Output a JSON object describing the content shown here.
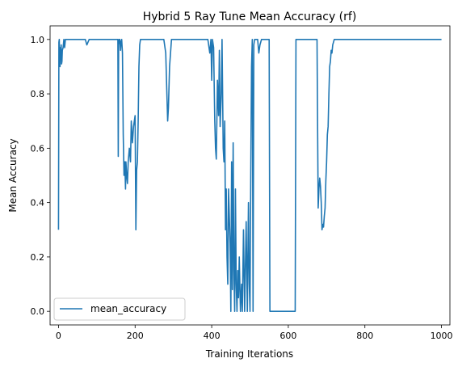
{
  "chart_data": {
    "type": "line",
    "title": "Hybrid 5 Ray Tune Mean Accuracy (rf)",
    "xlabel": "Training Iterations",
    "ylabel": "Mean Accuracy",
    "xlim": [
      -22,
      1022
    ],
    "ylim": [
      -0.05,
      1.05
    ],
    "xticks": [
      0,
      200,
      400,
      600,
      800,
      1000
    ],
    "yticks": [
      0.0,
      0.2,
      0.4,
      0.6,
      0.8,
      1.0
    ],
    "xtick_labels": [
      "0",
      "200",
      "400",
      "600",
      "800",
      "1000"
    ],
    "ytick_labels": [
      "0.0",
      "0.2",
      "0.4",
      "0.6",
      "0.8",
      "1.0"
    ],
    "grid": false,
    "legend_position": "lower-left",
    "series": [
      {
        "name": "mean_accuracy",
        "color": "#1f77b4",
        "x": [
          0,
          1,
          2,
          3,
          4,
          5,
          6,
          7,
          8,
          9,
          10,
          12,
          14,
          16,
          18,
          20,
          25,
          40,
          60,
          70,
          72,
          74,
          80,
          85,
          90,
          95,
          100,
          120,
          140,
          155,
          156,
          157,
          158,
          160,
          162,
          163,
          165,
          167,
          169,
          171,
          173,
          175,
          176,
          178,
          180,
          182,
          185,
          188,
          190,
          193,
          196,
          200,
          202,
          204,
          206,
          208,
          210,
          212,
          214,
          216,
          218,
          220,
          225,
          240,
          260,
          275,
          280,
          283,
          285,
          287,
          290,
          295,
          300,
          320,
          340,
          360,
          380,
          390,
          395,
          398,
          400,
          402,
          405,
          408,
          410,
          412,
          415,
          418,
          420,
          422,
          425,
          427,
          430,
          432,
          434,
          436,
          438,
          440,
          442,
          444,
          446,
          448,
          450,
          452,
          454,
          456,
          458,
          460,
          462,
          464,
          466,
          468,
          470,
          472,
          475,
          478,
          480,
          483,
          486,
          490,
          493,
          496,
          498,
          500,
          502,
          504,
          506,
          508,
          510,
          512,
          520,
          523,
          526,
          530,
          540,
          550,
          552,
          555,
          560,
          580,
          600,
          618,
          620,
          640,
          660,
          675,
          676,
          678,
          680,
          682,
          684,
          686,
          688,
          690,
          692,
          694,
          696,
          698,
          700,
          702,
          704,
          706,
          708,
          710,
          712,
          714,
          716,
          718,
          720,
          725,
          730,
          750,
          800,
          850,
          900,
          950,
          1000
        ],
        "y": [
          0.3,
          0.99,
          1.0,
          0.92,
          0.9,
          0.97,
          0.95,
          0.98,
          0.91,
          0.92,
          0.96,
          0.97,
          1.0,
          0.97,
          1.0,
          1.0,
          1.0,
          1.0,
          1.0,
          1.0,
          0.99,
          0.98,
          1.0,
          1.0,
          1.0,
          1.0,
          1.0,
          1.0,
          1.0,
          1.0,
          0.57,
          0.98,
          1.0,
          1.0,
          0.96,
          0.99,
          1.0,
          0.95,
          0.65,
          0.5,
          0.55,
          0.45,
          0.55,
          0.5,
          0.47,
          0.55,
          0.6,
          0.55,
          0.7,
          0.62,
          0.68,
          0.72,
          0.3,
          0.52,
          0.55,
          0.7,
          0.9,
          0.98,
          1.0,
          1.0,
          1.0,
          1.0,
          1.0,
          1.0,
          1.0,
          1.0,
          0.95,
          0.8,
          0.7,
          0.75,
          0.9,
          1.0,
          1.0,
          1.0,
          1.0,
          1.0,
          1.0,
          1.0,
          0.95,
          1.0,
          0.85,
          1.0,
          0.97,
          0.7,
          0.6,
          0.56,
          0.85,
          0.72,
          0.96,
          0.68,
          0.8,
          1.0,
          0.6,
          0.55,
          0.7,
          0.3,
          0.45,
          0.2,
          0.1,
          0.45,
          0.35,
          0.25,
          0.0,
          0.55,
          0.08,
          0.62,
          0.15,
          0.0,
          0.45,
          0.1,
          0.0,
          0.15,
          0.05,
          0.2,
          0.0,
          0.1,
          0.0,
          0.3,
          0.0,
          0.33,
          0.0,
          0.4,
          0.1,
          0.0,
          0.5,
          0.9,
          1.0,
          0.0,
          0.98,
          1.0,
          1.0,
          0.95,
          0.98,
          1.0,
          1.0,
          1.0,
          0.0,
          0.0,
          0.0,
          0.0,
          0.0,
          0.0,
          1.0,
          1.0,
          1.0,
          1.0,
          0.78,
          0.38,
          0.45,
          0.49,
          0.46,
          0.4,
          0.3,
          0.32,
          0.31,
          0.35,
          0.38,
          0.48,
          0.55,
          0.65,
          0.68,
          0.8,
          0.9,
          0.92,
          0.96,
          0.95,
          0.98,
          0.99,
          1.0,
          1.0,
          1.0,
          1.0,
          1.0,
          1.0,
          1.0,
          1.0,
          1.0
        ]
      }
    ]
  }
}
